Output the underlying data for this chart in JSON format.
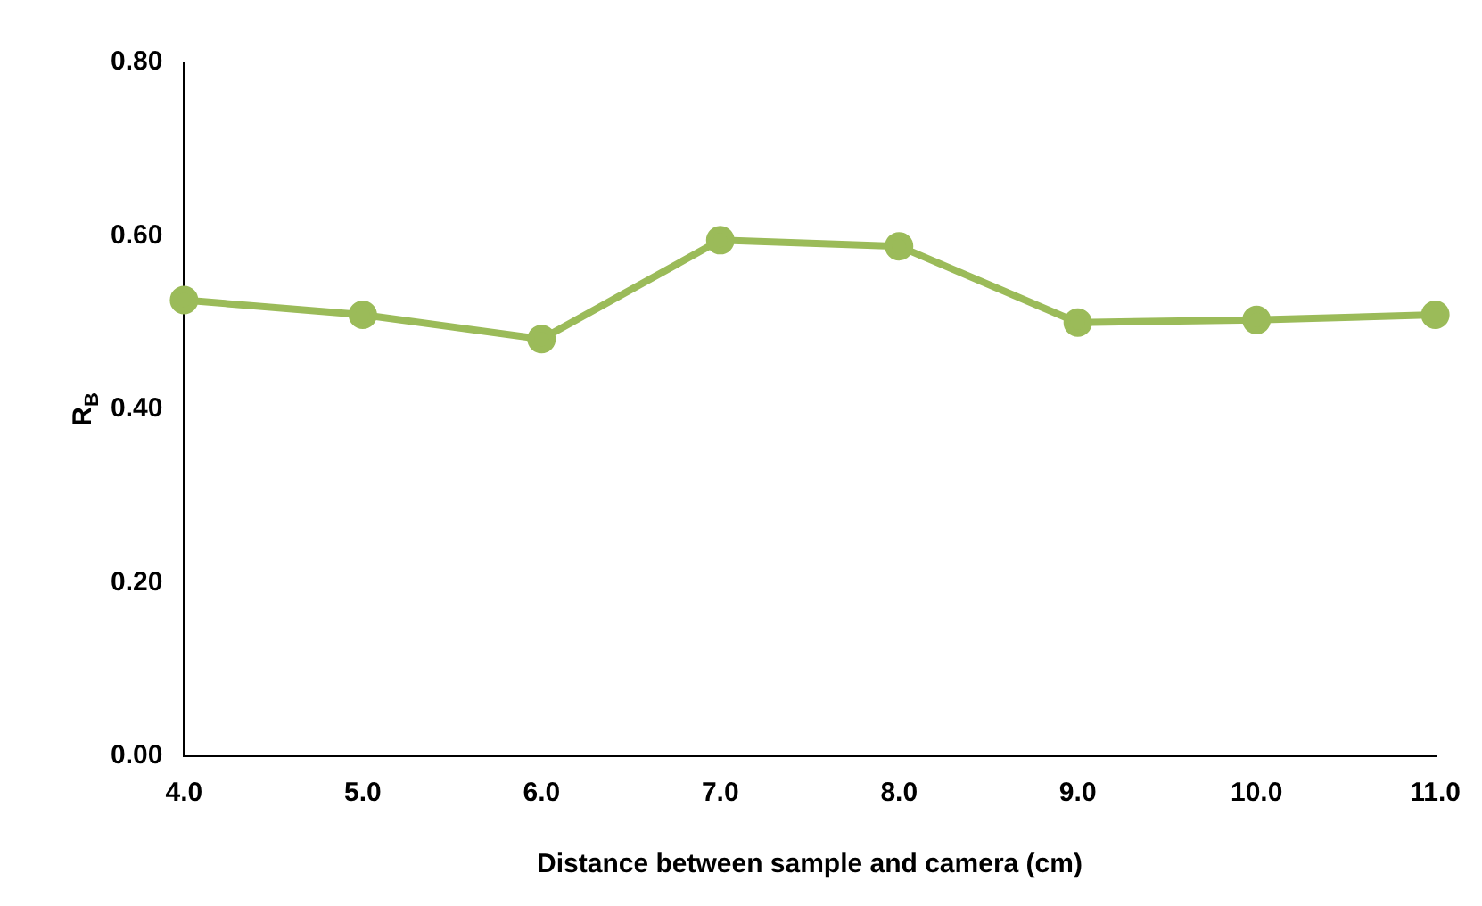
{
  "chart_data": {
    "type": "line",
    "xlabel": "Distance between sample and camera (cm)",
    "ylabel": "R$_{B}$",
    "categories": [
      "4.0",
      "5.0",
      "6.0",
      "7.0",
      "8.0",
      "9.0",
      "10.0",
      "11.0"
    ],
    "series": [
      {
        "color": "#9bbb59",
        "values": [
          0.526,
          0.509,
          0.481,
          0.595,
          0.588,
          0.5,
          0.503,
          0.509
        ]
      }
    ],
    "ylim": [
      0,
      0.8
    ],
    "yticks": [
      {
        "value": 0,
        "label": "0.00"
      },
      {
        "value": 0.2,
        "label": "0.20"
      },
      {
        "value": 0.4,
        "label": "0.40"
      },
      {
        "value": 0.6,
        "label": "0.60"
      },
      {
        "value": 0.8,
        "label": "0.80"
      }
    ],
    "grid": false,
    "legend": false,
    "marker": "circle",
    "line_style": "solid"
  }
}
